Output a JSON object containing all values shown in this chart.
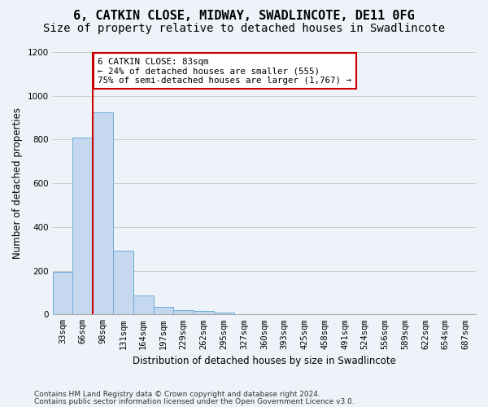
{
  "title": "6, CATKIN CLOSE, MIDWAY, SWADLINCOTE, DE11 0FG",
  "subtitle": "Size of property relative to detached houses in Swadlincote",
  "xlabel": "Distribution of detached houses by size in Swadlincote",
  "ylabel": "Number of detached properties",
  "footnote1": "Contains HM Land Registry data © Crown copyright and database right 2024.",
  "footnote2": "Contains public sector information licensed under the Open Government Licence v3.0.",
  "bar_values": [
    195,
    810,
    925,
    290,
    85,
    35,
    20,
    15,
    10,
    0,
    0,
    0,
    0,
    0,
    0,
    0,
    0,
    0,
    0,
    0,
    0
  ],
  "bin_labels": [
    "33sqm",
    "66sqm",
    "98sqm",
    "131sqm",
    "164sqm",
    "197sqm",
    "229sqm",
    "262sqm",
    "295sqm",
    "327sqm",
    "360sqm",
    "393sqm",
    "425sqm",
    "458sqm",
    "491sqm",
    "524sqm",
    "556sqm",
    "589sqm",
    "622sqm",
    "654sqm",
    "687sqm"
  ],
  "bar_color": "#c5d8f0",
  "bar_edge_color": "#6aaed6",
  "grid_color": "#cccccc",
  "vline_color": "#cc0000",
  "vline_pos": 1.5,
  "annotation_text": "6 CATKIN CLOSE: 83sqm\n← 24% of detached houses are smaller (555)\n75% of semi-detached houses are larger (1,767) →",
  "annotation_box_color": "#ffffff",
  "annotation_box_edge": "#cc0000",
  "ylim": [
    0,
    1200
  ],
  "yticks": [
    0,
    200,
    400,
    600,
    800,
    1000,
    1200
  ],
  "background_color": "#eef2f9",
  "plot_bg_color": "#eef2f9",
  "title_fontsize": 11,
  "subtitle_fontsize": 10,
  "axis_label_fontsize": 8.5,
  "tick_fontsize": 7.5,
  "footnote_fontsize": 6.5
}
